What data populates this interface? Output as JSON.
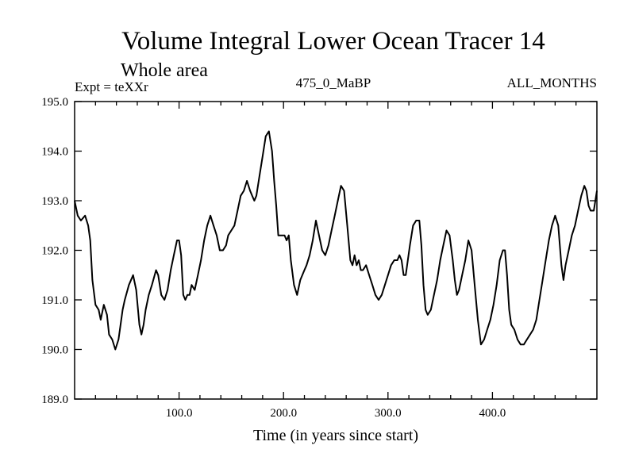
{
  "chart_data": {
    "type": "line",
    "title": "Volume Integral Lower Ocean Tracer 14",
    "subtitle": "Whole area",
    "expt_label": "Expt = teXXr",
    "center_label": "475_0_MaBP",
    "right_label": "ALL_MONTHS",
    "xlabel": "Time (in years since start)",
    "ylabel": "",
    "xlim": [
      0,
      500
    ],
    "ylim": [
      189.0,
      195.0
    ],
    "xticks": [
      100,
      200,
      300,
      400
    ],
    "xtick_labels": [
      "100.0",
      "200.0",
      "300.0",
      "400.0"
    ],
    "yticks": [
      189,
      190,
      191,
      192,
      193,
      194,
      195
    ],
    "ytick_labels": [
      "189.0",
      "190.0",
      "191.0",
      "192.0",
      "193.0",
      "194.0",
      "195.0"
    ],
    "grid": false,
    "color": "#000000",
    "series": [
      {
        "name": "Tracer 14",
        "x": [
          0,
          3,
          6,
          10,
          13,
          15,
          17,
          20,
          23,
          25,
          28,
          31,
          33,
          36,
          39,
          42,
          44,
          46,
          48,
          52,
          56,
          59,
          62,
          64,
          66,
          68,
          71,
          74,
          78,
          80,
          83,
          86,
          89,
          92,
          95,
          98,
          100,
          102,
          104,
          106,
          108,
          110,
          112,
          115,
          118,
          121,
          124,
          127,
          130,
          133,
          136,
          139,
          142,
          145,
          147,
          150,
          153,
          156,
          159,
          162,
          165,
          168,
          170,
          172,
          174,
          177,
          180,
          183,
          186,
          189,
          191,
          193,
          195,
          197,
          199,
          201,
          203,
          205,
          207,
          210,
          213,
          216,
          218,
          220,
          222,
          225,
          228,
          231,
          234,
          237,
          240,
          243,
          246,
          249,
          252,
          255,
          258,
          261,
          264,
          266,
          268,
          270,
          272,
          274,
          276,
          279,
          282,
          285,
          288,
          291,
          294,
          297,
          300,
          303,
          306,
          309,
          311,
          313,
          315,
          317,
          319,
          321,
          324,
          327,
          330,
          332,
          334,
          336,
          338,
          341,
          344,
          347,
          350,
          353,
          356,
          359,
          362,
          364,
          366,
          368,
          371,
          374,
          377,
          380,
          383,
          386,
          389,
          392,
          395,
          398,
          401,
          404,
          407,
          410,
          412,
          414,
          416,
          418,
          421,
          424,
          427,
          430,
          433,
          436,
          439,
          442,
          445,
          448,
          451,
          454,
          457,
          460,
          463,
          466,
          468,
          470,
          473,
          476,
          479,
          482,
          485,
          488,
          490,
          492,
          494,
          497,
          500
        ],
        "y": [
          193.0,
          192.7,
          192.6,
          192.7,
          192.5,
          192.2,
          191.4,
          190.9,
          190.8,
          190.6,
          190.9,
          190.7,
          190.3,
          190.2,
          190.0,
          190.2,
          190.5,
          190.8,
          191.0,
          191.3,
          191.5,
          191.2,
          190.5,
          190.3,
          190.5,
          190.8,
          191.1,
          191.3,
          191.6,
          191.5,
          191.1,
          191.0,
          191.2,
          191.6,
          191.9,
          192.2,
          192.2,
          191.9,
          191.1,
          191.0,
          191.1,
          191.1,
          191.3,
          191.2,
          191.5,
          191.8,
          192.2,
          192.5,
          192.7,
          192.5,
          192.3,
          192.0,
          192.0,
          192.1,
          192.3,
          192.4,
          192.5,
          192.8,
          193.1,
          193.2,
          193.4,
          193.2,
          193.1,
          193.0,
          193.1,
          193.5,
          193.9,
          194.3,
          194.4,
          194.0,
          193.4,
          192.9,
          192.3,
          192.3,
          192.3,
          192.3,
          192.2,
          192.3,
          191.8,
          191.3,
          191.1,
          191.4,
          191.5,
          191.6,
          191.7,
          191.9,
          192.2,
          192.6,
          192.3,
          192.0,
          191.9,
          192.1,
          192.4,
          192.7,
          193.0,
          193.3,
          193.2,
          192.5,
          191.8,
          191.7,
          191.9,
          191.7,
          191.8,
          191.6,
          191.6,
          191.7,
          191.5,
          191.3,
          191.1,
          191.0,
          191.1,
          191.3,
          191.5,
          191.7,
          191.8,
          191.8,
          191.9,
          191.8,
          191.5,
          191.5,
          191.8,
          192.1,
          192.5,
          192.6,
          192.6,
          192.1,
          191.3,
          190.8,
          190.7,
          190.8,
          191.1,
          191.4,
          191.8,
          192.1,
          192.4,
          192.3,
          191.8,
          191.4,
          191.1,
          191.2,
          191.5,
          191.8,
          192.2,
          192.0,
          191.3,
          190.6,
          190.1,
          190.2,
          190.4,
          190.6,
          190.9,
          191.3,
          191.8,
          192.0,
          192.0,
          191.5,
          190.8,
          190.5,
          190.4,
          190.2,
          190.1,
          190.1,
          190.2,
          190.3,
          190.4,
          190.6,
          191.0,
          191.4,
          191.8,
          192.2,
          192.5,
          192.7,
          192.5,
          191.7,
          191.4,
          191.7,
          192.0,
          192.3,
          192.5,
          192.8,
          193.1,
          193.3,
          193.2,
          192.9,
          192.8,
          192.8,
          193.2
        ]
      }
    ]
  }
}
